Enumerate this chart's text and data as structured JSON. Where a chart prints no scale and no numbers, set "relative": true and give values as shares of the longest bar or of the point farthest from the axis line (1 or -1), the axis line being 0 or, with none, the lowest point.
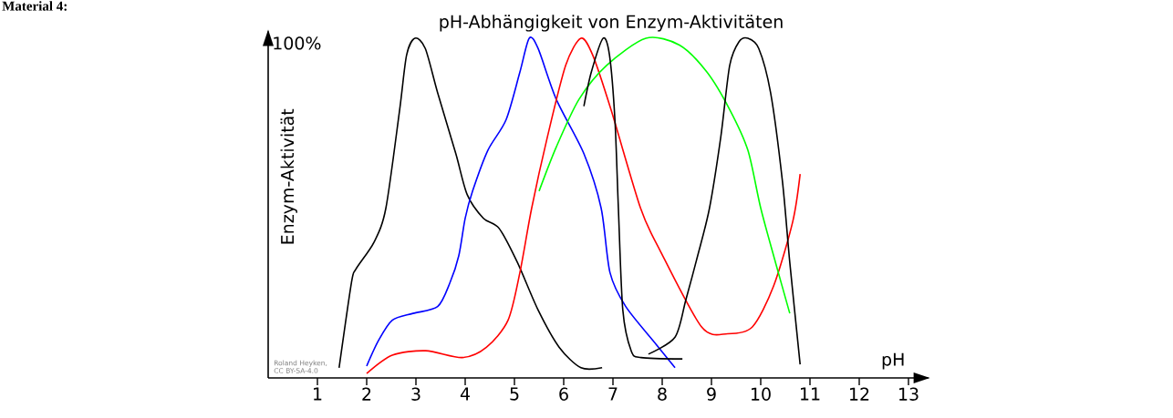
{
  "chart_data": {
    "type": "line",
    "title": "pH-Abhängigkeit von Enzym-Aktivitäten",
    "xlabel": "pH",
    "ylabel": "Enzym-Aktivität",
    "relative": true,
    "annotations": [
      "Material 4:",
      "100%",
      "Roland Heyken, CC BY-SA-4.0"
    ],
    "xlim": [
      0,
      13.4
    ],
    "xticks": [
      1,
      2,
      3,
      4,
      5,
      6,
      7,
      8,
      9,
      10,
      11,
      12,
      13
    ],
    "grid": false,
    "marker": "none",
    "line_style": "solid",
    "series": [
      {
        "color": "#000000",
        "x": [
          1.44,
          1.69,
          1.78,
          2.15,
          2.39,
          2.67,
          2.81,
          2.98,
          3.19,
          3.44,
          3.81,
          4.04,
          4.37,
          4.69,
          5.06,
          5.48,
          5.91,
          6.35,
          6.78
        ],
        "values": [
          0.03,
          0.28,
          0.32,
          0.4,
          0.5,
          0.79,
          0.95,
          1.0,
          0.97,
          0.84,
          0.66,
          0.54,
          0.47,
          0.44,
          0.34,
          0.2,
          0.09,
          0.03,
          0.03
        ]
      },
      {
        "color": "#0000ff",
        "x": [
          2.0,
          2.24,
          2.52,
          2.94,
          3.44,
          3.69,
          3.87,
          4.0,
          4.15,
          4.46,
          4.83,
          5.11,
          5.3,
          5.48,
          5.85,
          6.41,
          6.76,
          6.94,
          7.26,
          7.87,
          8.26
        ],
        "values": [
          0.035,
          0.11,
          0.17,
          0.19,
          0.21,
          0.28,
          0.36,
          0.47,
          0.55,
          0.67,
          0.76,
          0.9,
          1.0,
          0.97,
          0.82,
          0.66,
          0.5,
          0.31,
          0.21,
          0.1,
          0.03
        ]
      },
      {
        "color": "#ff0000",
        "x": [
          2.0,
          2.52,
          3.2,
          3.94,
          4.43,
          4.87,
          5.11,
          5.35,
          5.67,
          6.04,
          6.35,
          6.59,
          6.96,
          7.56,
          7.94,
          8.8,
          9.33,
          9.83,
          10.26,
          10.65,
          10.8
        ],
        "values": [
          0.013,
          0.067,
          0.08,
          0.06,
          0.09,
          0.17,
          0.31,
          0.5,
          0.71,
          0.92,
          1.0,
          0.95,
          0.79,
          0.5,
          0.38,
          0.15,
          0.13,
          0.15,
          0.27,
          0.46,
          0.6
        ]
      },
      {
        "color": "#00ff00",
        "x": [
          5.5,
          5.85,
          6.31,
          6.87,
          7.67,
          8.35,
          8.91,
          9.37,
          9.74,
          10.0,
          10.3,
          10.59
        ],
        "values": [
          0.55,
          0.68,
          0.82,
          0.92,
          1.0,
          0.98,
          0.9,
          0.79,
          0.67,
          0.5,
          0.34,
          0.19
        ]
      },
      {
        "color": "#000000",
        "x": [
          6.41,
          6.56,
          6.8,
          6.93,
          7.04,
          7.11,
          7.2,
          7.37,
          7.57,
          8.41
        ],
        "values": [
          0.8,
          0.9,
          1.0,
          0.95,
          0.76,
          0.5,
          0.2,
          0.08,
          0.06,
          0.056
        ]
      },
      {
        "color": "#000000",
        "x": [
          7.72,
          8.26,
          8.48,
          8.72,
          8.96,
          9.19,
          9.37,
          9.56,
          9.74,
          9.96,
          10.2,
          10.44,
          10.59,
          10.8
        ],
        "values": [
          0.07,
          0.12,
          0.23,
          0.36,
          0.5,
          0.71,
          0.92,
          0.99,
          1.0,
          0.97,
          0.84,
          0.58,
          0.34,
          0.04
        ]
      }
    ]
  }
}
